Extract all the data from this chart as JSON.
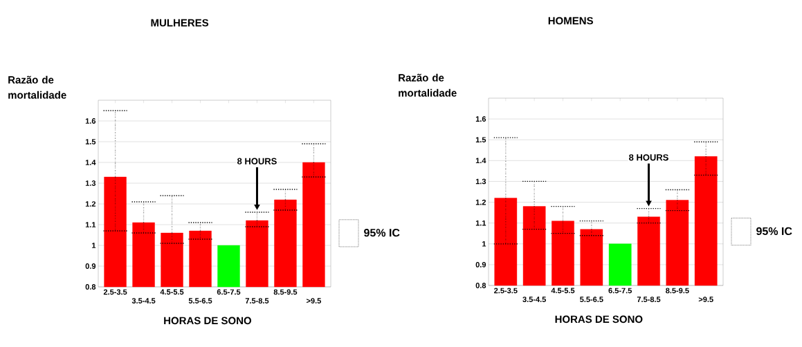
{
  "chart_data": [
    {
      "type": "bar",
      "title": "MULHERES",
      "xlabel": "HORAS DE SONO",
      "ylabel": "Razão de mortalidade",
      "categories": [
        "2.5-3.5",
        "3.5-4.5",
        "4.5-5.5",
        "5.5-6.5",
        "6.5-7.5",
        "7.5-8.5",
        "8.5-9.5",
        ">9.5"
      ],
      "values": [
        1.33,
        1.11,
        1.06,
        1.07,
        1.0,
        1.12,
        1.22,
        1.4
      ],
      "colors": [
        "#ff0000",
        "#ff0000",
        "#ff0000",
        "#ff0000",
        "#00ff00",
        "#ff0000",
        "#ff0000",
        "#ff0000"
      ],
      "errors": [
        [
          1.07,
          1.65
        ],
        [
          1.06,
          1.21
        ],
        [
          1.01,
          1.24
        ],
        [
          1.03,
          1.11
        ],
        null,
        [
          1.09,
          1.16
        ],
        [
          1.17,
          1.27
        ],
        [
          1.33,
          1.49
        ]
      ],
      "ylim": [
        0.8,
        1.7
      ],
      "yticks": [
        0.8,
        0.9,
        1,
        1.1,
        1.2,
        1.3,
        1.4,
        1.5,
        1.6
      ],
      "grid": "y",
      "annotations": [
        {
          "text": "8 HOURS",
          "x": "7.5-8.5",
          "y": 1.17
        },
        "95% IC"
      ]
    },
    {
      "type": "bar",
      "title": "HOMENS",
      "xlabel": "HORAS DE SONO",
      "ylabel": "Razão de mortalidade",
      "categories": [
        "2.5-3.5",
        "3.5-4.5",
        "4.5-5.5",
        "5.5-6.5",
        "6.5-7.5",
        "7.5-8.5",
        "8.5-9.5",
        ">9.5"
      ],
      "values": [
        1.22,
        1.18,
        1.11,
        1.07,
        1.0,
        1.13,
        1.21,
        1.42
      ],
      "colors": [
        "#ff0000",
        "#ff0000",
        "#ff0000",
        "#ff0000",
        "#00ff00",
        "#ff0000",
        "#ff0000",
        "#ff0000"
      ],
      "errors": [
        [
          1.0,
          1.51
        ],
        [
          1.07,
          1.3
        ],
        [
          1.05,
          1.18
        ],
        [
          1.04,
          1.11
        ],
        null,
        [
          1.1,
          1.17
        ],
        [
          1.16,
          1.26
        ],
        [
          1.33,
          1.49
        ]
      ],
      "ylim": [
        0.8,
        1.7
      ],
      "yticks": [
        0.8,
        0.9,
        1,
        1.1,
        1.2,
        1.3,
        1.4,
        1.5,
        1.6
      ],
      "grid": "y",
      "annotations": [
        {
          "text": "8 HOURS",
          "x": "7.5-8.5",
          "y": 1.18
        },
        "95% IC"
      ]
    }
  ]
}
